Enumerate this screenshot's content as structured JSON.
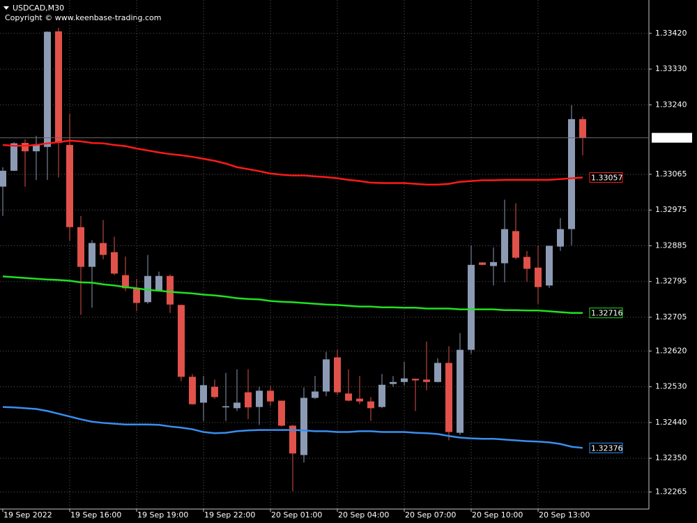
{
  "chart_data": {
    "type": "candlestick",
    "title": "USDCAD,M30",
    "subtitle": "Copyright © www.keenbase-trading.com",
    "categories": [
      "19 Sep 2022",
      null,
      null,
      null,
      null,
      null,
      "19 Sep 16:00",
      null,
      null,
      null,
      null,
      null,
      "19 Sep 19:00",
      null,
      null,
      null,
      null,
      null,
      "19 Sep 22:00",
      null,
      null,
      null,
      null,
      null,
      "20 Sep 01:00",
      null,
      null,
      null,
      null,
      null,
      "20 Sep 04:00",
      null,
      null,
      null,
      null,
      null,
      "20 Sep 07:00",
      null,
      null,
      null,
      null,
      null,
      "20 Sep 10:00",
      null,
      null,
      null,
      null,
      null,
      "20 Sep 13:00",
      null,
      null,
      null,
      null
    ],
    "open": [
      1.33034,
      1.33074,
      1.33144,
      1.33123,
      1.33134,
      1.33425,
      1.33139,
      1.32932,
      1.32832,
      1.32892,
      1.32869,
      1.32811,
      1.32778,
      1.32743,
      1.32771,
      1.32809,
      1.32736,
      1.32555,
      1.3249,
      1.3253,
      1.32478,
      1.32476,
      1.32516,
      1.32479,
      1.3252,
      1.32495,
      1.32432,
      1.32358,
      1.32502,
      1.32518,
      1.32604,
      1.32513,
      1.325,
      1.32493,
      1.32479,
      1.32537,
      1.32542,
      1.3255,
      1.32548,
      1.32542,
      1.3259,
      1.32414,
      1.32623,
      1.32843,
      1.32834,
      1.32841,
      1.32922,
      1.32857,
      1.3283,
      1.32785,
      1.32883,
      1.32927,
      1.33204
    ],
    "high": [
      1.33083,
      1.33146,
      1.33153,
      1.33162,
      1.33425,
      1.33434,
      1.33218,
      1.3296,
      1.32899,
      1.3295,
      1.32908,
      1.32858,
      1.32802,
      1.32862,
      1.3282,
      1.32813,
      1.32737,
      1.32562,
      1.32557,
      1.32548,
      1.32565,
      1.32574,
      1.32574,
      1.3253,
      1.32532,
      1.32495,
      1.32434,
      1.32528,
      1.32557,
      1.32618,
      1.32623,
      1.32574,
      1.32557,
      1.32504,
      1.32562,
      1.32557,
      1.32593,
      1.32551,
      1.32644,
      1.32602,
      1.32632,
      1.32665,
      1.32886,
      1.32844,
      1.32881,
      1.33001,
      1.32992,
      1.32872,
      1.32886,
      1.32885,
      1.32955,
      1.33239,
      1.33211
    ],
    "low": [
      1.3296,
      1.33073,
      1.33034,
      1.33051,
      1.33051,
      1.33057,
      1.32897,
      1.32711,
      1.32729,
      1.32851,
      1.32811,
      1.32771,
      1.3272,
      1.32739,
      1.32771,
      1.32716,
      1.32544,
      1.32485,
      1.32444,
      1.325,
      1.32444,
      1.32469,
      1.32448,
      1.32434,
      1.32481,
      1.3243,
      1.32267,
      1.32339,
      1.32499,
      1.32506,
      1.32509,
      1.32493,
      1.32486,
      1.32444,
      1.32476,
      1.3253,
      1.32534,
      1.32469,
      1.32521,
      1.32541,
      1.32395,
      1.32409,
      1.32613,
      1.32836,
      1.32785,
      1.32793,
      1.32851,
      1.32795,
      1.32739,
      1.32779,
      1.32872,
      1.32886,
      1.33113
    ],
    "close": [
      1.33074,
      1.33143,
      1.33123,
      1.33141,
      1.33424,
      1.33144,
      1.32932,
      1.32832,
      1.32892,
      1.32862,
      1.32815,
      1.32778,
      1.32741,
      1.32809,
      1.32809,
      1.32737,
      1.32555,
      1.32486,
      1.32534,
      1.32504,
      1.32481,
      1.3249,
      1.32478,
      1.3252,
      1.32493,
      1.32432,
      1.32362,
      1.32502,
      1.32518,
      1.32599,
      1.32516,
      1.32495,
      1.32493,
      1.32476,
      1.32535,
      1.32542,
      1.32551,
      1.32546,
      1.32542,
      1.3259,
      1.32416,
      1.32623,
      1.32837,
      1.32837,
      1.32844,
      1.32927,
      1.32855,
      1.32827,
      1.32781,
      1.32885,
      1.32927,
      1.33204,
      1.33157
    ],
    "up_color": "#8c9ab4",
    "down_color": "#e0524a",
    "series": [
      {
        "color": "#ff1a1a",
        "values": [
          1.33139,
          1.33137,
          1.33137,
          1.33139,
          1.33143,
          1.33146,
          1.3315,
          1.33148,
          1.33144,
          1.33143,
          1.33139,
          1.33136,
          1.3313,
          1.33125,
          1.3312,
          1.33116,
          1.33113,
          1.33109,
          1.33104,
          1.33099,
          1.33092,
          1.33083,
          1.33078,
          1.33073,
          1.33067,
          1.33064,
          1.33062,
          1.33062,
          1.3306,
          1.33058,
          1.33055,
          1.33051,
          1.33048,
          1.33044,
          1.33043,
          1.33043,
          1.33043,
          1.33041,
          1.33039,
          1.33039,
          1.33041,
          1.33046,
          1.33048,
          1.3305,
          1.3305,
          1.33051,
          1.33051,
          1.33051,
          1.33051,
          1.33051,
          1.33053,
          1.33055,
          1.33057
        ]
      },
      {
        "color": "#22e022",
        "values": [
          1.32808,
          1.32806,
          1.32804,
          1.32802,
          1.328,
          1.32799,
          1.32797,
          1.32793,
          1.32792,
          1.32788,
          1.32785,
          1.32781,
          1.32778,
          1.32774,
          1.32772,
          1.32769,
          1.32767,
          1.32765,
          1.32762,
          1.3276,
          1.32757,
          1.32753,
          1.32751,
          1.3275,
          1.32746,
          1.32744,
          1.32743,
          1.32741,
          1.32739,
          1.32737,
          1.32736,
          1.32734,
          1.32732,
          1.32732,
          1.3273,
          1.3273,
          1.32729,
          1.32729,
          1.32727,
          1.32727,
          1.32727,
          1.32725,
          1.32725,
          1.32725,
          1.32725,
          1.32723,
          1.32723,
          1.32722,
          1.32722,
          1.3272,
          1.32718,
          1.32716,
          1.32716
        ]
      },
      {
        "color": "#3a8ff0",
        "values": [
          1.32479,
          1.32478,
          1.32476,
          1.32474,
          1.32469,
          1.32462,
          1.32455,
          1.32448,
          1.32442,
          1.32439,
          1.32437,
          1.32435,
          1.32435,
          1.32435,
          1.32434,
          1.3243,
          1.32427,
          1.32423,
          1.32416,
          1.32413,
          1.32414,
          1.32418,
          1.3242,
          1.32421,
          1.32421,
          1.32421,
          1.32421,
          1.3242,
          1.32418,
          1.32418,
          1.32416,
          1.32416,
          1.32418,
          1.32418,
          1.32416,
          1.32416,
          1.32416,
          1.32414,
          1.32413,
          1.32411,
          1.32406,
          1.32402,
          1.324,
          1.32399,
          1.32399,
          1.32397,
          1.32395,
          1.32393,
          1.32392,
          1.3239,
          1.32386,
          1.32379,
          1.32376
        ]
      }
    ],
    "ylim": [
      1.32222,
      1.33504
    ],
    "yticks": [
      {
        "value": 1.3342,
        "label": "1.33420"
      },
      {
        "value": 1.3333,
        "label": "1.33330"
      },
      {
        "value": 1.3324,
        "label": "1.33240"
      },
      1.33065,
      1.32975,
      1.32885,
      1.32795,
      1.32705,
      {
        "value": 1.3262,
        "label": "1.32620"
      },
      {
        "value": 1.3253,
        "label": "1.32530"
      },
      {
        "value": 1.3244,
        "label": "1.32440"
      },
      {
        "value": 1.3235,
        "label": "1.32350"
      },
      1.32265
    ],
    "grid": true
  }
}
